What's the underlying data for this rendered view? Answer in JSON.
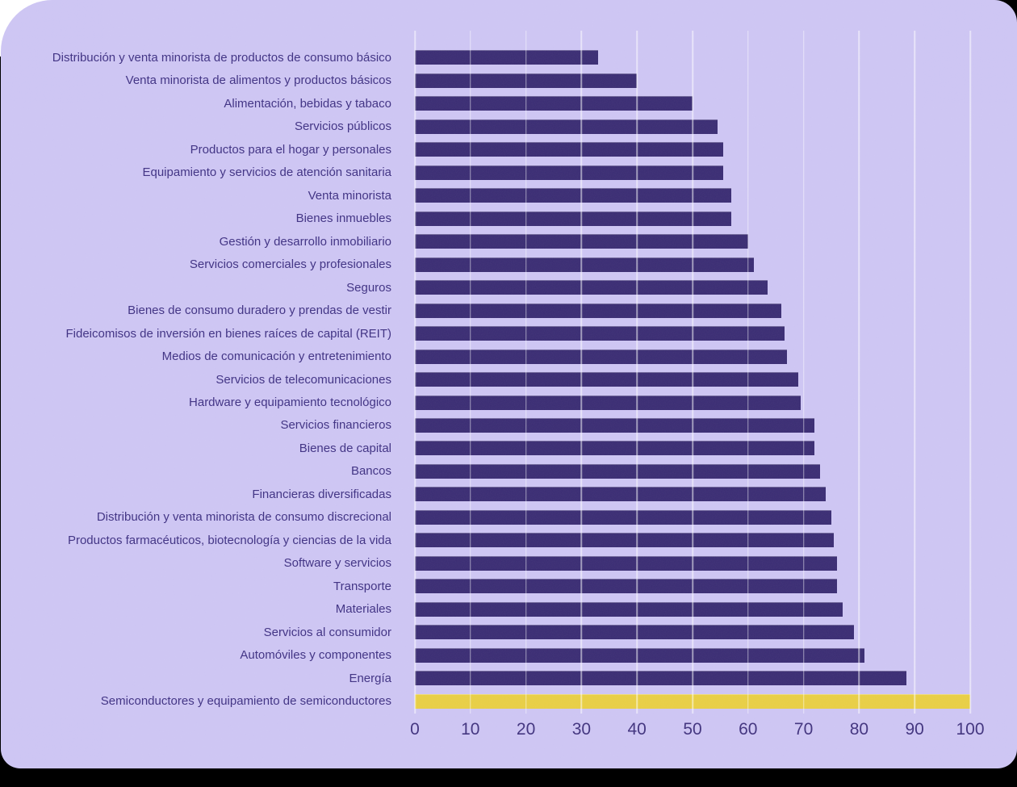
{
  "page": {
    "bottom_strip_color": "#000000",
    "top_left_corner_color": "#ffffff",
    "card_background": "#cdc5f3"
  },
  "chart_data": {
    "type": "bar",
    "orientation": "horizontal",
    "title": "",
    "xlabel": "",
    "ylabel": "",
    "xlim": [
      0,
      100
    ],
    "x_ticks": [
      0,
      10,
      20,
      30,
      40,
      50,
      60,
      70,
      80,
      90,
      100
    ],
    "grid": "vertical-gridlines-over-bars",
    "legend": "none",
    "bar_color": "#3a2c73",
    "highlight_color": "#e8ce44",
    "highlight_index": 28,
    "background_color": "#cdc5f3",
    "text_color": "#3f3183",
    "categories": [
      "Distribución y venta minorista de productos de consumo básico",
      "Venta minorista de alimentos y productos básicos",
      "Alimentación, bebidas y tabaco",
      "Servicios públicos",
      "Productos para el hogar y personales",
      "Equipamiento y servicios de atención sanitaria",
      "Venta minorista",
      "Bienes inmuebles",
      "Gestión y desarrollo inmobiliario",
      "Servicios comerciales y profesionales",
      "Seguros",
      "Bienes de consumo duradero y prendas de vestir",
      "Fideicomisos de inversión en bienes raíces de capital (REIT)",
      "Medios de comunicación y entretenimiento",
      "Servicios de telecomunicaciones",
      "Hardware y equipamiento tecnológico",
      "Servicios financieros",
      "Bienes de capital",
      "Bancos",
      "Financieras diversificadas",
      "Distribución y venta minorista de consumo discrecional",
      "Productos farmacéuticos, biotecnología y ciencias de la vida",
      "Software y servicios",
      "Transporte",
      "Materiales",
      "Servicios al consumidor",
      "Automóviles y componentes",
      "Energía",
      "Semiconductores y equipamiento de semiconductores"
    ],
    "values": [
      33,
      40,
      50,
      54.5,
      55.5,
      55.5,
      57,
      57,
      60,
      61,
      63.5,
      66,
      66.5,
      67,
      69,
      69.5,
      72,
      72,
      73,
      74,
      75,
      75.5,
      76,
      76,
      77,
      79,
      81,
      88.5,
      100
    ]
  }
}
